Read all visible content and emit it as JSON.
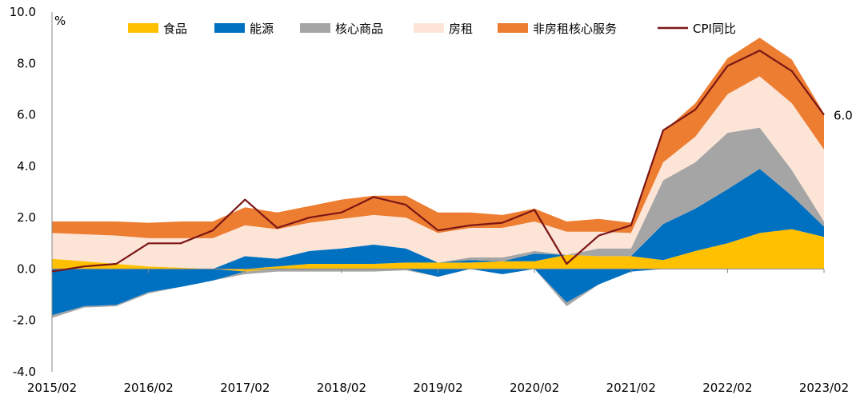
{
  "chart_data": {
    "type": "area",
    "unit_label": "%",
    "x_ticks": [
      "2015/02",
      "2016/02",
      "2017/02",
      "2018/02",
      "2019/02",
      "2020/02",
      "2021/02",
      "2022/02",
      "2023/02"
    ],
    "y_ticks": [
      "10.0",
      "8.0",
      "6.0",
      "4.0",
      "2.0",
      "0.0",
      "-2.0",
      "-4.0"
    ],
    "ylim": [
      -4,
      10
    ],
    "last_value_label": "6.0",
    "x": [
      "2015/02",
      "2015/06",
      "2015/10",
      "2016/02",
      "2016/06",
      "2016/10",
      "2017/02",
      "2017/06",
      "2017/10",
      "2018/02",
      "2018/06",
      "2018/10",
      "2019/02",
      "2019/06",
      "2019/10",
      "2020/02",
      "2020/06",
      "2020/10",
      "2021/02",
      "2021/06",
      "2021/10",
      "2022/02",
      "2022/06",
      "2022/10",
      "2023/02"
    ],
    "series": [
      {
        "name": "食品",
        "color": "#FFC000",
        "values": [
          0.4,
          0.3,
          0.2,
          0.1,
          0.05,
          0.0,
          -0.1,
          0.1,
          0.2,
          0.2,
          0.2,
          0.25,
          0.25,
          0.25,
          0.3,
          0.3,
          0.55,
          0.5,
          0.5,
          0.35,
          0.7,
          1.0,
          1.4,
          1.55,
          1.25
        ]
      },
      {
        "name": "能源",
        "color": "#0070C0",
        "values": [
          -1.8,
          -1.45,
          -1.4,
          -0.9,
          -0.7,
          -0.45,
          0.5,
          0.3,
          0.5,
          0.6,
          0.75,
          0.55,
          -0.3,
          0.1,
          -0.2,
          0.3,
          -1.3,
          -0.6,
          -0.1,
          1.4,
          1.65,
          2.1,
          2.5,
          1.3,
          0.4
        ]
      },
      {
        "name": "核心商品",
        "color": "#A5A5A5",
        "values": [
          -0.1,
          -0.05,
          -0.05,
          -0.05,
          0.0,
          0.0,
          -0.1,
          -0.1,
          -0.1,
          -0.1,
          -0.1,
          -0.05,
          0.0,
          0.1,
          0.15,
          0.1,
          -0.15,
          0.3,
          0.3,
          1.7,
          1.8,
          2.2,
          1.6,
          1.0,
          0.2
        ]
      },
      {
        "name": "房租",
        "color": "#FCE4D6",
        "values": [
          1.0,
          1.05,
          1.1,
          1.1,
          1.15,
          1.2,
          1.2,
          1.15,
          1.1,
          1.15,
          1.15,
          1.2,
          1.15,
          1.15,
          1.15,
          1.15,
          0.9,
          0.65,
          0.6,
          0.7,
          1.0,
          1.5,
          2.0,
          2.6,
          2.8
        ]
      },
      {
        "name": "非房租核心服务",
        "color": "#ED7D31",
        "values": [
          0.45,
          0.5,
          0.55,
          0.6,
          0.65,
          0.65,
          0.7,
          0.65,
          0.65,
          0.75,
          0.75,
          0.85,
          0.8,
          0.6,
          0.5,
          0.5,
          0.4,
          0.5,
          0.4,
          1.2,
          1.3,
          1.4,
          1.5,
          1.7,
          1.4
        ]
      }
    ],
    "cpi": {
      "name": "CPI同比",
      "color": "#7B1616",
      "values": [
        -0.1,
        0.1,
        0.2,
        1.0,
        1.0,
        1.5,
        2.7,
        1.6,
        2.0,
        2.2,
        2.8,
        2.5,
        1.5,
        1.7,
        1.8,
        2.3,
        0.2,
        1.3,
        1.7,
        5.4,
        6.2,
        7.9,
        8.5,
        7.7,
        6.0
      ]
    },
    "legend_position": "top",
    "grid": false
  }
}
